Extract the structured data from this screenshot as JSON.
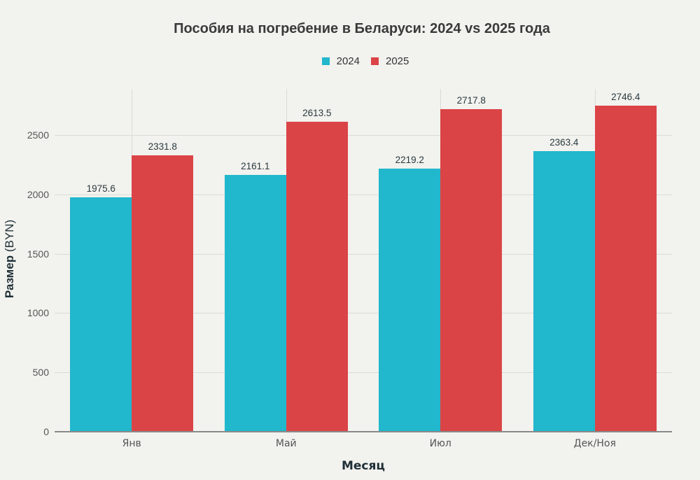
{
  "chart_data": {
    "type": "bar",
    "title": "Пособия на погребение в Беларуси: 2024 vs 2025 года",
    "xlabel": "Месяц",
    "ylabel_bold": "Размер",
    "ylabel_rest": "(BYN)",
    "categories": [
      "Янв",
      "Май",
      "Июл",
      "Дек/Ноя"
    ],
    "series": [
      {
        "name": "2024",
        "color": "#21b7cc",
        "values": [
          1975.6,
          2161.1,
          2219.2,
          2363.4
        ],
        "labels": [
          "1975.6",
          "2161.1",
          "2219.2",
          "2363.4"
        ]
      },
      {
        "name": "2025",
        "color": "#db4446",
        "values": [
          2331.8,
          2613.5,
          2717.8,
          2746.4
        ],
        "labels": [
          "2331.8",
          "2613.5",
          "2717.8",
          "2746.4"
        ]
      }
    ],
    "yticks": [
      0,
      500,
      1000,
      1500,
      2000,
      2500
    ],
    "ylim": [
      0,
      2890
    ],
    "grid": true,
    "legend_position": "top-center"
  }
}
